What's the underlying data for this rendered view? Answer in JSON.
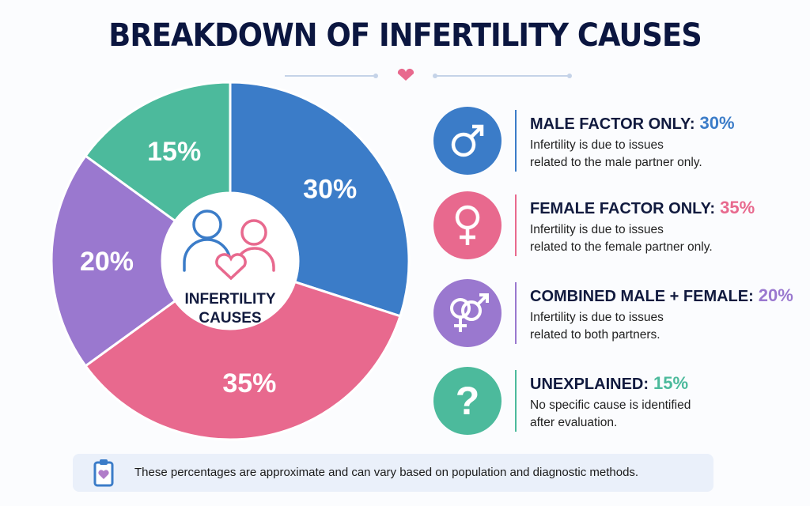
{
  "title": "BREAKDOWN OF INFERTILITY CAUSES",
  "colors": {
    "title": "#0b1640",
    "male": "#3b7cc8",
    "female": "#e8698e",
    "combined": "#9a78cf",
    "unexplained": "#4cba9c",
    "heart": "#e8698e"
  },
  "chart_data": {
    "type": "pie",
    "donut": true,
    "center_label": [
      "INFERTILITY",
      "CAUSES"
    ],
    "categories": [
      "Male factor only",
      "Female factor only",
      "Combined male + female",
      "Unexplained"
    ],
    "values": [
      30,
      35,
      20,
      15
    ],
    "labels": [
      "30%",
      "35%",
      "20%",
      "15%"
    ],
    "colors": [
      "#3b7cc8",
      "#e8698e",
      "#9a78cf",
      "#4cba9c"
    ],
    "start": "top",
    "direction": "clockwise"
  },
  "legend": [
    {
      "icon": "male-symbol-icon",
      "heading": "MALE FACTOR ONLY:",
      "pct": "30%",
      "line1": "Infertility is due to issues",
      "line2": "related to the male partner only."
    },
    {
      "icon": "female-symbol-icon",
      "heading": "FEMALE FACTOR ONLY:",
      "pct": "35%",
      "line1": "Infertility is due to issues",
      "line2": "related to the female partner only."
    },
    {
      "icon": "male-female-symbol-icon",
      "heading": "COMBINED MALE + FEMALE:",
      "pct": "20%",
      "line1": "Infertility is due to issues",
      "line2": "related to both partners."
    },
    {
      "icon": "question-mark-icon",
      "heading": "UNEXPLAINED:",
      "pct": "15%",
      "line1": "No specific cause is identified",
      "line2": "after evaluation."
    }
  ],
  "note": {
    "icon": "clipboard-heart-icon",
    "text": "These percentages are approximate and can vary based on population and diagnostic methods."
  }
}
